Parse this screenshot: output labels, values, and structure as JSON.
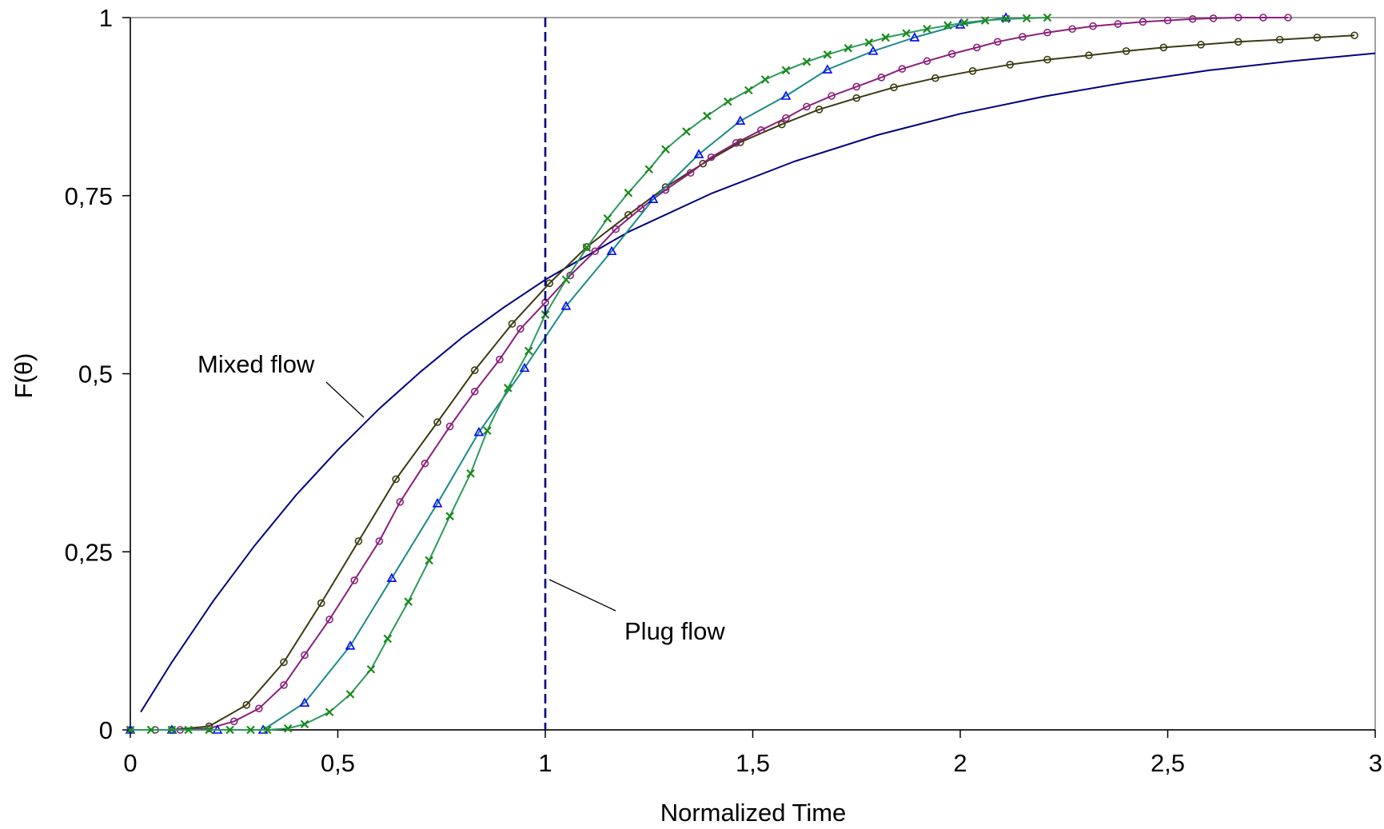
{
  "chart_data": {
    "type": "line",
    "title": "",
    "xlabel": "Normalized Time",
    "ylabel": "F(θ)",
    "xlim": [
      0,
      3
    ],
    "ylim": [
      0,
      1
    ],
    "x_ticks": [
      0,
      0.5,
      1,
      1.5,
      2,
      2.5,
      3
    ],
    "x_tick_labels": [
      "0",
      "0,5",
      "1",
      "1,5",
      "2",
      "2,5",
      "3"
    ],
    "y_ticks": [
      0,
      0.25,
      0.5,
      0.75,
      1
    ],
    "y_tick_labels": [
      "0",
      "0,25",
      "0,5",
      "0,75",
      "1"
    ],
    "grid": false,
    "legend": "none",
    "series": [
      {
        "label": "Mixed flow",
        "color": "#000080",
        "marker": "none",
        "x": [
          0.025,
          0.1,
          0.2,
          0.3,
          0.4,
          0.5,
          0.6,
          0.7,
          0.8,
          0.9,
          1.0,
          1.2,
          1.4,
          1.6,
          1.8,
          2.0,
          2.2,
          2.4,
          2.6,
          2.8,
          3.0
        ],
        "y": [
          0.025,
          0.095,
          0.181,
          0.259,
          0.33,
          0.393,
          0.451,
          0.503,
          0.551,
          0.593,
          0.632,
          0.699,
          0.753,
          0.798,
          0.835,
          0.865,
          0.889,
          0.909,
          0.926,
          0.939,
          0.95
        ]
      },
      {
        "color": "#3b3b10",
        "marker": "circle",
        "x": [
          0.0,
          0.1,
          0.19,
          0.28,
          0.37,
          0.46,
          0.55,
          0.64,
          0.74,
          0.83,
          0.92,
          1.01,
          1.1,
          1.2,
          1.29,
          1.38,
          1.47,
          1.57,
          1.66,
          1.75,
          1.84,
          1.94,
          2.03,
          2.12,
          2.21,
          2.31,
          2.4,
          2.49,
          2.58,
          2.67,
          2.77,
          2.86,
          2.95,
          3.05
        ],
        "y": [
          0.0,
          0.0,
          0.005,
          0.035,
          0.095,
          0.178,
          0.265,
          0.352,
          0.432,
          0.505,
          0.57,
          0.627,
          0.678,
          0.723,
          0.762,
          0.795,
          0.825,
          0.85,
          0.871,
          0.887,
          0.902,
          0.915,
          0.925,
          0.934,
          0.941,
          0.947,
          0.953,
          0.958,
          0.962,
          0.966,
          0.969,
          0.972,
          0.975,
          0.978
        ]
      },
      {
        "color": "#8b1f7a",
        "marker": "circle",
        "x": [
          0.0,
          0.06,
          0.12,
          0.19,
          0.25,
          0.31,
          0.37,
          0.42,
          0.48,
          0.54,
          0.6,
          0.65,
          0.71,
          0.77,
          0.83,
          0.89,
          0.94,
          1.0,
          1.06,
          1.12,
          1.17,
          1.23,
          1.29,
          1.35,
          1.4,
          1.46,
          1.52,
          1.58,
          1.63,
          1.69,
          1.75,
          1.81,
          1.86,
          1.92,
          1.98,
          2.04,
          2.09,
          2.15,
          2.21,
          2.27,
          2.32,
          2.38,
          2.44,
          2.5,
          2.56,
          2.61,
          2.67,
          2.73,
          2.79
        ],
        "y": [
          0.0,
          0.0,
          0.0,
          0.002,
          0.012,
          0.03,
          0.063,
          0.105,
          0.155,
          0.21,
          0.265,
          0.32,
          0.374,
          0.426,
          0.475,
          0.52,
          0.563,
          0.6,
          0.638,
          0.672,
          0.703,
          0.732,
          0.758,
          0.782,
          0.804,
          0.824,
          0.842,
          0.859,
          0.875,
          0.89,
          0.903,
          0.916,
          0.928,
          0.939,
          0.949,
          0.958,
          0.966,
          0.973,
          0.979,
          0.984,
          0.988,
          0.991,
          0.994,
          0.996,
          0.998,
          0.999,
          1.0,
          1.0,
          1.0
        ]
      },
      {
        "color": "#0000ff",
        "line_color": "#1a8a8a",
        "marker": "triangle",
        "x": [
          0.0,
          0.1,
          0.21,
          0.32,
          0.42,
          0.53,
          0.63,
          0.74,
          0.84,
          0.95,
          1.05,
          1.16,
          1.26,
          1.37,
          1.47,
          1.58,
          1.68,
          1.79,
          1.89,
          2.0,
          2.11
        ],
        "y": [
          0.0,
          0.0,
          0.0,
          0.0,
          0.038,
          0.118,
          0.213,
          0.318,
          0.418,
          0.508,
          0.595,
          0.672,
          0.745,
          0.808,
          0.855,
          0.89,
          0.927,
          0.953,
          0.972,
          0.99,
          1.0
        ]
      },
      {
        "color": "#1a8a1a",
        "line_color": "#2a9a5a",
        "marker": "x",
        "x": [
          0.0,
          0.05,
          0.1,
          0.14,
          0.19,
          0.24,
          0.29,
          0.33,
          0.38,
          0.42,
          0.48,
          0.53,
          0.58,
          0.62,
          0.67,
          0.72,
          0.77,
          0.82,
          0.86,
          0.91,
          0.96,
          1.0,
          1.05,
          1.1,
          1.15,
          1.2,
          1.25,
          1.29,
          1.34,
          1.39,
          1.44,
          1.49,
          1.53,
          1.58,
          1.63,
          1.68,
          1.73,
          1.78,
          1.82,
          1.87,
          1.92,
          1.97,
          2.01,
          2.06,
          2.11,
          2.16,
          2.21
        ],
        "y": [
          0.0,
          0.0,
          0.0,
          0.0,
          0.0,
          0.0,
          0.0,
          0.0,
          0.002,
          0.008,
          0.025,
          0.05,
          0.085,
          0.128,
          0.18,
          0.238,
          0.3,
          0.36,
          0.42,
          0.48,
          0.532,
          0.583,
          0.632,
          0.677,
          0.718,
          0.754,
          0.787,
          0.815,
          0.84,
          0.862,
          0.882,
          0.898,
          0.913,
          0.926,
          0.938,
          0.948,
          0.957,
          0.965,
          0.972,
          0.978,
          0.984,
          0.989,
          0.993,
          0.996,
          0.998,
          0.999,
          1.0
        ]
      }
    ],
    "reference_lines": [
      {
        "label": "Plug flow",
        "x": 1,
        "color": "#000080",
        "style": "dashed"
      }
    ],
    "annotations": [
      {
        "text": "Mixed flow"
      },
      {
        "text": "Plug flow"
      }
    ]
  }
}
